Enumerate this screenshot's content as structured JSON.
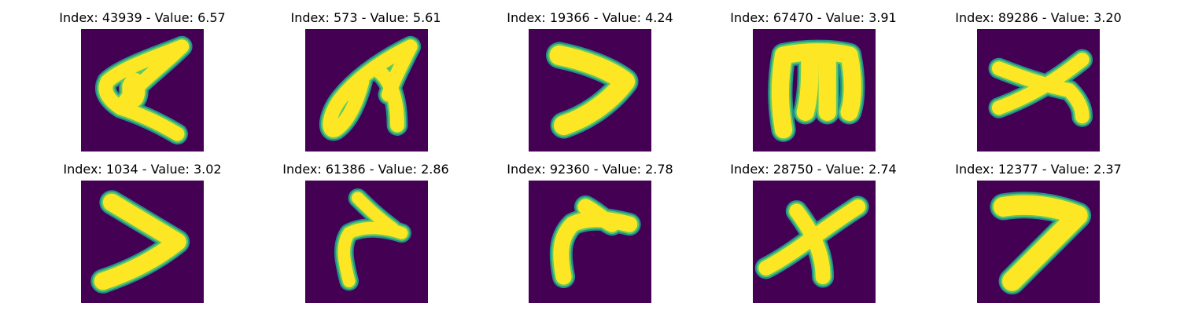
{
  "colors": {
    "background": "#440154",
    "stroke_edge": "#21918c",
    "stroke_mid": "#5ec962",
    "stroke_core": "#fde725"
  },
  "panels": [
    {
      "label": "Index: 43939 - Value: 6.57",
      "image": "glyph-a"
    },
    {
      "label": "Index: 573 - Value: 5.61",
      "image": "glyph-looped-arch"
    },
    {
      "label": "Index: 19366 - Value: 4.24",
      "image": "glyph-chevron"
    },
    {
      "label": "Index: 67470 - Value: 3.91",
      "image": "glyph-m"
    },
    {
      "label": "Index: 89286 - Value: 3.20",
      "image": "glyph-x"
    },
    {
      "label": "Index: 1034 - Value: 3.02",
      "image": "glyph-chevron"
    },
    {
      "label": "Index: 61386 - Value: 2.86",
      "image": "glyph-hook"
    },
    {
      "label": "Index: 92360 - Value: 2.78",
      "image": "glyph-hook"
    },
    {
      "label": "Index: 28750 - Value: 2.74",
      "image": "glyph-x"
    },
    {
      "label": "Index: 12377 - Value: 2.37",
      "image": "glyph-seven"
    }
  ]
}
